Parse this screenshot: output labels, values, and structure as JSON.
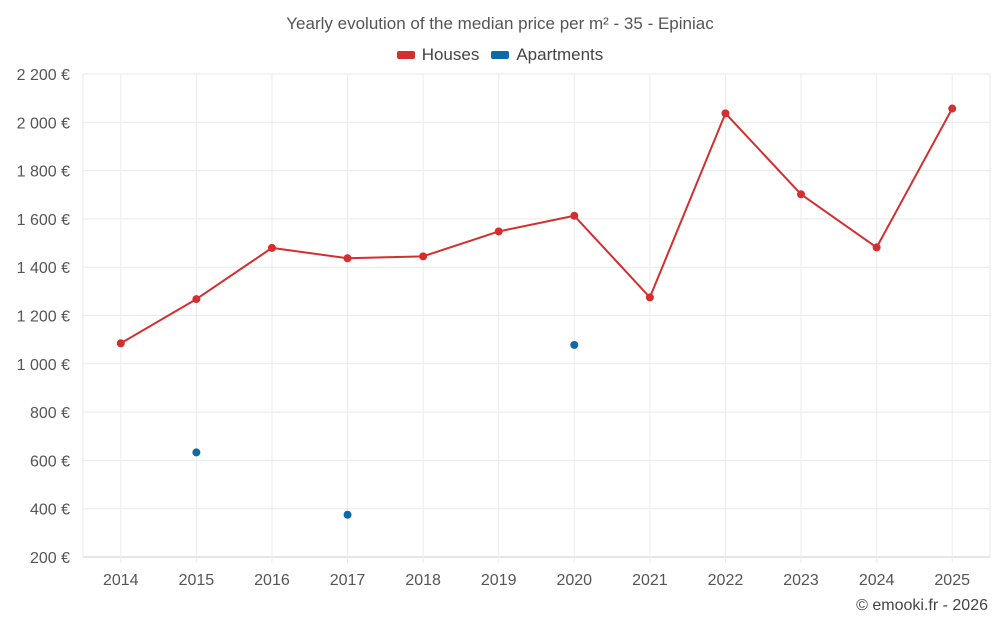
{
  "chart_data": {
    "type": "line",
    "title": "Yearly evolution of the median price per m² - 35 - Epiniac",
    "xlabel": "",
    "ylabel": "",
    "categories": [
      "2014",
      "2015",
      "2016",
      "2017",
      "2018",
      "2019",
      "2020",
      "2021",
      "2022",
      "2023",
      "2024",
      "2025"
    ],
    "ylim": [
      200,
      2200
    ],
    "yticks": [
      200,
      400,
      600,
      800,
      1000,
      1200,
      1400,
      1600,
      1800,
      2000,
      2200
    ],
    "ytick_labels": [
      "200 €",
      "400 €",
      "600 €",
      "800 €",
      "1 000 €",
      "1 200 €",
      "1 400 €",
      "1 600 €",
      "1 800 €",
      "2 000 €",
      "2 200 €"
    ],
    "legend_position": "top-center",
    "grid": true,
    "series": [
      {
        "name": "Houses",
        "color": "#d32f2f",
        "values": [
          1085,
          1268,
          1480,
          1437,
          1445,
          1548,
          1613,
          1275,
          2037,
          1702,
          1482,
          2057
        ]
      },
      {
        "name": "Apartments",
        "color": "#0d6aa8",
        "values": [
          null,
          633,
          null,
          375,
          null,
          null,
          1078,
          null,
          null,
          null,
          null,
          null
        ]
      }
    ]
  },
  "footer": "© emooki.fr - 2026"
}
